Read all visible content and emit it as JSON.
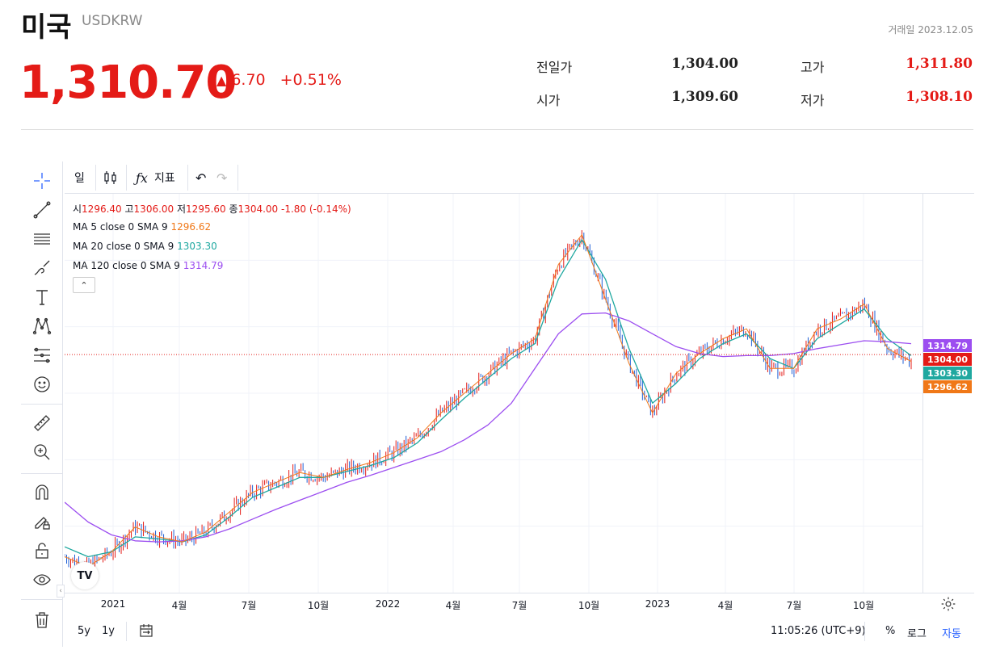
{
  "header": {
    "title": "미국",
    "symbol": "USDKRW",
    "trade_date": "거래일 2023.12.05",
    "price": "1,310.70",
    "change": "6.70",
    "change_pct": "+0.51%",
    "stats": [
      {
        "label": "전일가",
        "value": "1,304.00",
        "color": "#111111"
      },
      {
        "label": "고가",
        "value": "1,311.80",
        "color": "#e41b17"
      },
      {
        "label": "시가",
        "value": "1,309.60",
        "color": "#111111"
      },
      {
        "label": "저가",
        "value": "1,308.10",
        "color": "#e41b17"
      }
    ]
  },
  "toolbar": {
    "interval": "일",
    "indicator_label": "지표"
  },
  "legend": {
    "ohlc_open_label": "시",
    "ohlc_open": "1296.40",
    "ohlc_high_label": "고",
    "ohlc_high": "1306.00",
    "ohlc_low_label": "저",
    "ohlc_low": "1295.60",
    "ohlc_close_label": "종",
    "ohlc_close": "1304.00",
    "ohlc_change": "-1.80 (-0.14%)",
    "ma5_label": "MA 5 close 0 SMA 9",
    "ma5_value": "1296.62",
    "ma20_label": "MA 20 close 0 SMA 9",
    "ma20_value": "1303.30",
    "ma120_label": "MA 120 close 0 SMA 9",
    "ma120_value": "1314.79"
  },
  "price_axis_badges": [
    {
      "value": "1314.79",
      "color": "#9c4ef0"
    },
    {
      "value": "1304.00",
      "color": "#e41b17"
    },
    {
      "value": "1303.30",
      "color": "#1fa8a0"
    },
    {
      "value": "1296.62",
      "color": "#f07818"
    }
  ],
  "time_axis": [
    "2021",
    "4월",
    "7월",
    "10월",
    "2022",
    "4월",
    "7월",
    "10월",
    "2023",
    "4월",
    "7월",
    "10월"
  ],
  "bottom_bar": {
    "range_5y": "5y",
    "range_1y": "1y",
    "clock": "11:05:26 (UTC+9)",
    "pct": "%",
    "log": "로그",
    "auto": "자동"
  },
  "colors": {
    "up": "#e41b17",
    "down": "#1f5fd6",
    "ma5": "#f07818",
    "ma20": "#1fa8a0",
    "ma120": "#9c4ef0"
  },
  "chart_data": {
    "type": "line",
    "title": "USDKRW",
    "x": [
      "2020-12",
      "2021-01",
      "2021-02",
      "2021-03",
      "2021-04",
      "2021-05",
      "2021-06",
      "2021-07",
      "2021-08",
      "2021-09",
      "2021-10",
      "2021-11",
      "2021-12",
      "2022-01",
      "2022-02",
      "2022-03",
      "2022-04",
      "2022-05",
      "2022-06",
      "2022-07",
      "2022-08",
      "2022-09",
      "2022-10",
      "2022-11",
      "2022-12",
      "2023-01",
      "2023-02",
      "2023-03",
      "2023-04",
      "2023-05",
      "2023-06",
      "2023-07",
      "2023-08",
      "2023-09",
      "2023-10",
      "2023-11",
      "2023-12"
    ],
    "series": [
      {
        "name": "MA 5 close 0 SMA 9",
        "values": [
          1100,
          1090,
          1105,
          1130,
          1120,
          1115,
          1125,
          1145,
          1165,
          1175,
          1185,
          1180,
          1188,
          1195,
          1205,
          1220,
          1245,
          1265,
          1285,
          1305,
          1320,
          1395,
          1425,
          1360,
          1295,
          1245,
          1285,
          1305,
          1320,
          1330,
          1290,
          1290,
          1330,
          1340,
          1355,
          1310,
          1297
        ]
      },
      {
        "name": "MA 20 close 0 SMA 9",
        "values": [
          1110,
          1100,
          1105,
          1120,
          1118,
          1115,
          1122,
          1140,
          1160,
          1170,
          1180,
          1180,
          1186,
          1192,
          1200,
          1215,
          1238,
          1260,
          1280,
          1300,
          1315,
          1380,
          1420,
          1380,
          1310,
          1255,
          1275,
          1300,
          1315,
          1325,
          1300,
          1290,
          1320,
          1335,
          1350,
          1320,
          1303
        ]
      },
      {
        "name": "MA 120 close 0 SMA 9",
        "values": [
          1155,
          1135,
          1122,
          1116,
          1115,
          1116,
          1120,
          1128,
          1138,
          1148,
          1157,
          1166,
          1175,
          1182,
          1190,
          1198,
          1206,
          1218,
          1233,
          1255,
          1290,
          1325,
          1345,
          1346,
          1338,
          1325,
          1312,
          1305,
          1302,
          1303,
          1303,
          1305,
          1310,
          1314,
          1318,
          1317,
          1315
        ]
      }
    ],
    "ylim": [
      1080,
      1450
    ]
  }
}
